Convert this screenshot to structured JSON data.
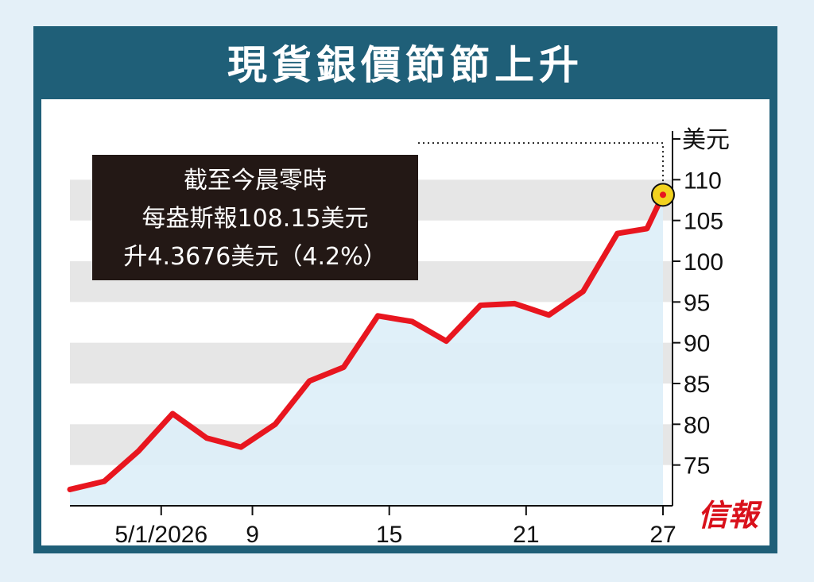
{
  "title": "現貨銀價節節上升",
  "brand": "信報",
  "chart_data": {
    "type": "line",
    "title": "現貨銀價節節上升",
    "unit_label": "美元",
    "annotation": [
      "截至今晨零時",
      "每盎斯報108.15美元",
      "升4.3676美元（4.2%）"
    ],
    "x_tick_labels": [
      "5/1/2026",
      "9",
      "15",
      "21",
      "27"
    ],
    "y_ticks": [
      75,
      80,
      85,
      90,
      95,
      100,
      105,
      110
    ],
    "ylim": [
      70,
      115
    ],
    "x_domain": [
      1,
      27
    ],
    "x_tick_positions": [
      5,
      9,
      15,
      21,
      27
    ],
    "grid": "horizontal bands",
    "series": [
      {
        "x": [
          1,
          2.5,
          4,
          5.5,
          7,
          8.5,
          10,
          11.5,
          13,
          14.5,
          16,
          17.5,
          19,
          20.5,
          22,
          23.5,
          25,
          26.3,
          27
        ],
        "values": [
          72.0,
          73.0,
          76.7,
          81.3,
          78.3,
          77.2,
          80.0,
          85.3,
          87.0,
          93.3,
          92.6,
          90.2,
          94.6,
          94.8,
          93.4,
          96.3,
          103.4,
          104.0,
          108.15
        ]
      }
    ],
    "colors": {
      "line": "#e8161f",
      "area": "#ddeef8",
      "band": "#e6e6e6",
      "marker": "#f2d21f"
    }
  }
}
